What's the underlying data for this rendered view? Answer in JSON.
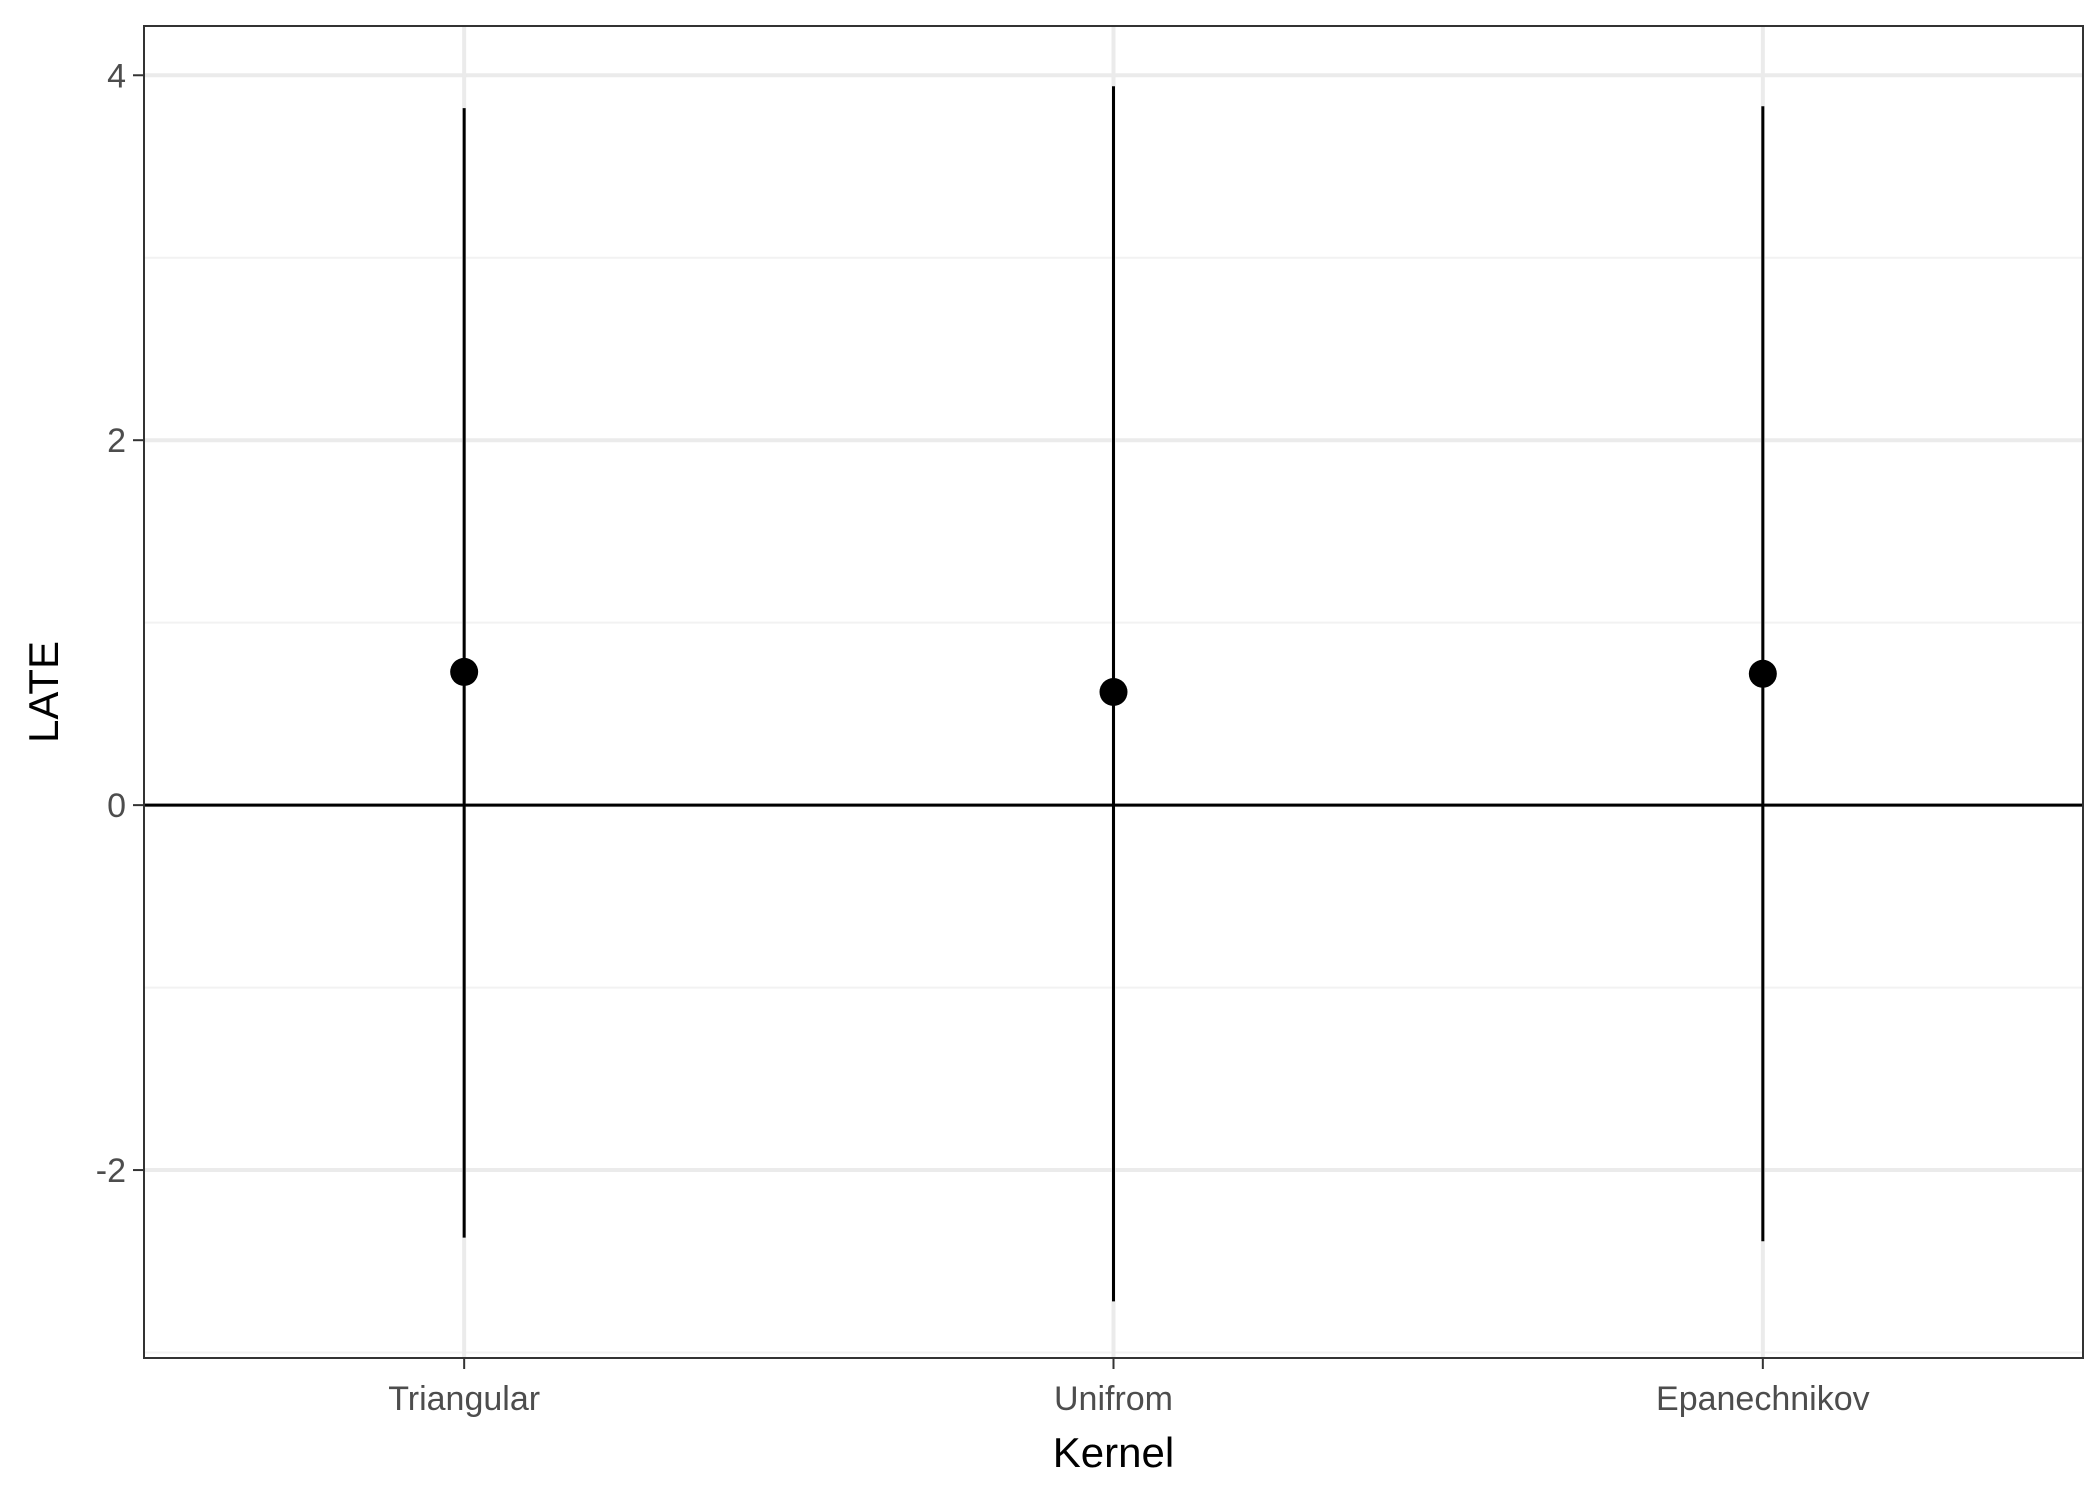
{
  "chart_data": {
    "type": "scatter",
    "title": "",
    "xlabel": "Kernel",
    "ylabel": "LATE",
    "categories": [
      "Triangular",
      "Unifrom",
      "Epanechnikov"
    ],
    "series": [
      {
        "estimate": [
          0.73,
          0.62,
          0.72
        ],
        "ci_lower": [
          -2.37,
          -2.72,
          -2.39
        ],
        "ci_upper": [
          3.82,
          3.94,
          3.83
        ]
      }
    ],
    "ylim": [
      -3.03,
      4.27
    ],
    "yticks": [
      -2,
      0,
      2,
      4
    ],
    "ytick_labels": [
      "-2",
      "0",
      "2",
      "4"
    ],
    "reference_line_y": 0,
    "grid": true,
    "legend": "none",
    "colors": {
      "point": "#000000",
      "errorbar": "#000000",
      "grid_major": "#ebebeb",
      "grid_minor": "#f2f2f2",
      "panel_border": "#333333",
      "tick_text": "#4d4d4d"
    }
  }
}
